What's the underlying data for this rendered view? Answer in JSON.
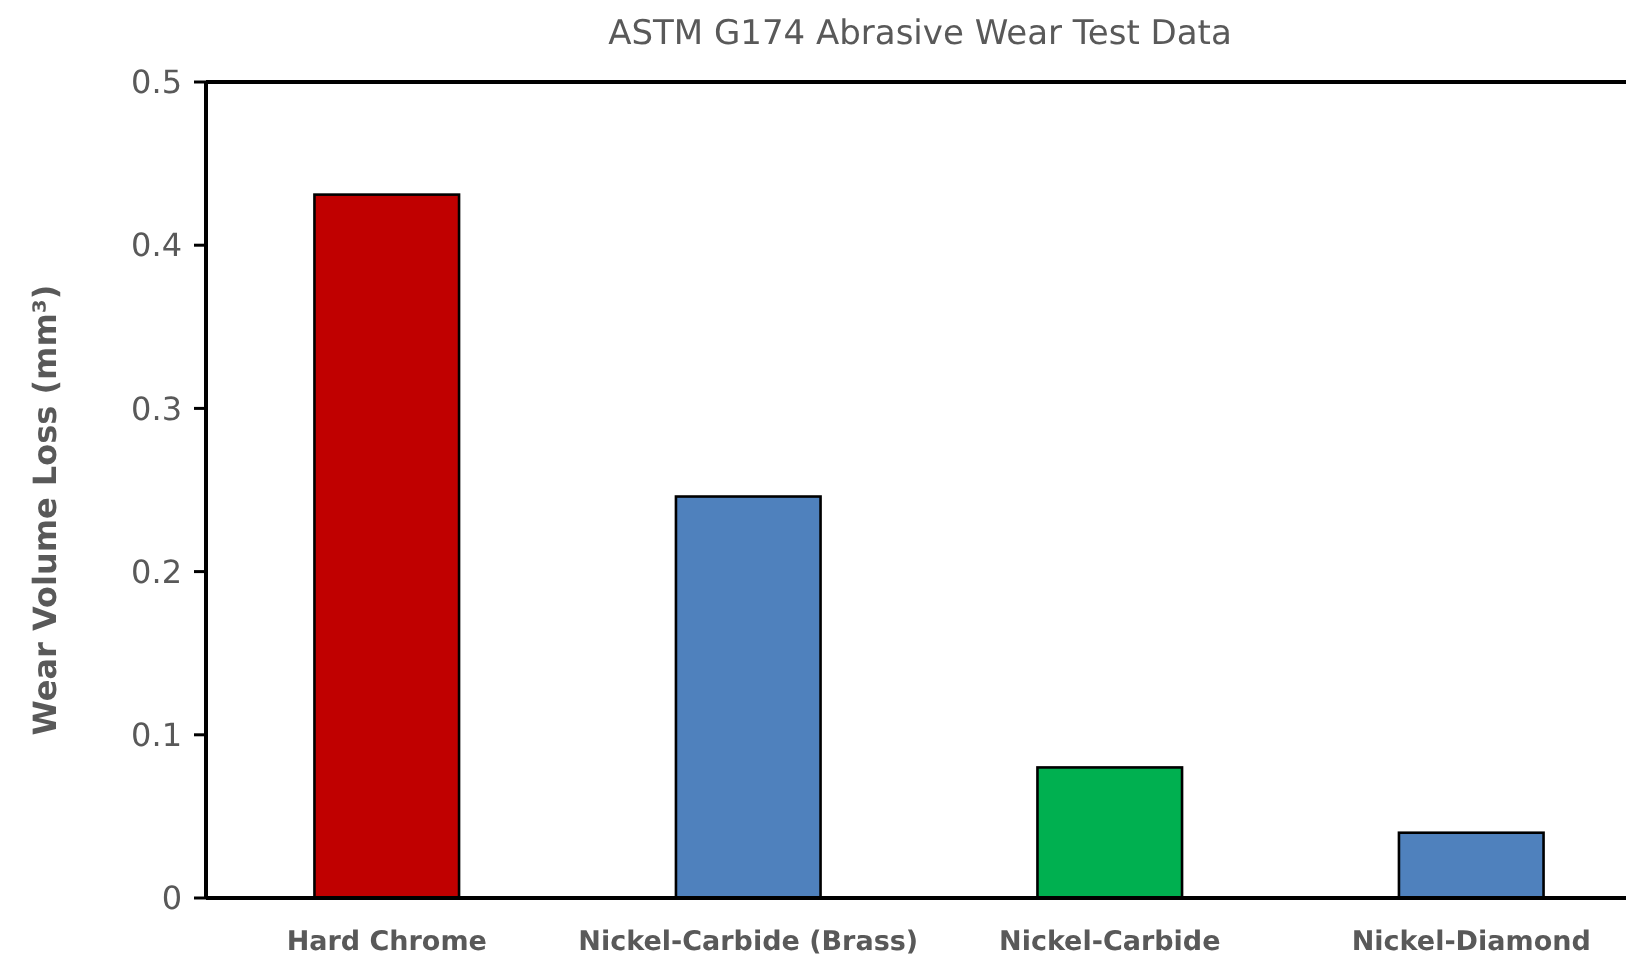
{
  "chart_data": {
    "type": "bar",
    "title": "ASTM G174 Abrasive Wear Test Data",
    "ylabel": "Wear Volume Loss (mm³)",
    "categories": [
      "Hard Chrome",
      "Nickel-Carbide (Brass)",
      "Nickel-Carbide",
      "Nickel-Diamond"
    ],
    "values": [
      0.431,
      0.246,
      0.08,
      0.04
    ],
    "colors": [
      "#c00000",
      "#4f81bd",
      "#00b050",
      "#4f81bd"
    ],
    "ylim": [
      0,
      0.5
    ],
    "yticks": [
      0,
      0.1,
      0.2,
      0.3,
      0.4,
      0.5
    ],
    "grid": false
  }
}
